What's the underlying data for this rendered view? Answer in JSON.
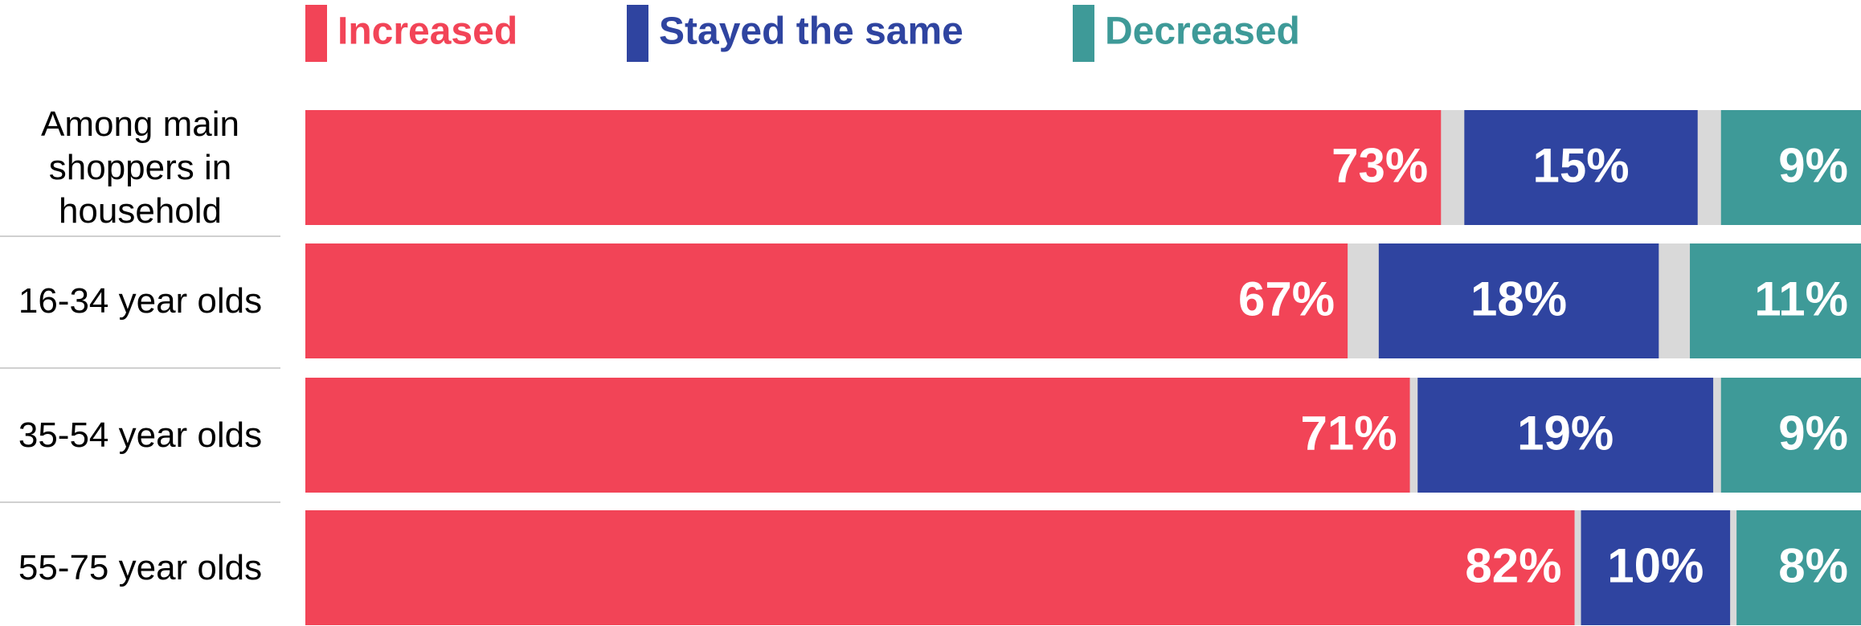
{
  "chart_data": {
    "type": "stacked_bar_horizontal",
    "categories": [
      "Among main shoppers in household",
      "16-34 year olds",
      "35-54 year olds",
      "55-75 year olds"
    ],
    "series": [
      {
        "name": "Increased",
        "color": "#f24457",
        "values": [
          73,
          67,
          71,
          82
        ]
      },
      {
        "name": "Stayed the same",
        "color": "#2f44a0",
        "values": [
          15,
          18,
          19,
          10
        ]
      },
      {
        "name": "Decreased",
        "color": "#3e9a98",
        "values": [
          9,
          11,
          9,
          8
        ]
      }
    ],
    "value_labels": [
      [
        "73%",
        "67%",
        "71%",
        "82%"
      ],
      [
        "15%",
        "18%",
        "19%",
        "10%"
      ],
      [
        "9%",
        "11%",
        "9%",
        "8%"
      ]
    ],
    "xlim": [
      0,
      100
    ],
    "legend": "top"
  }
}
